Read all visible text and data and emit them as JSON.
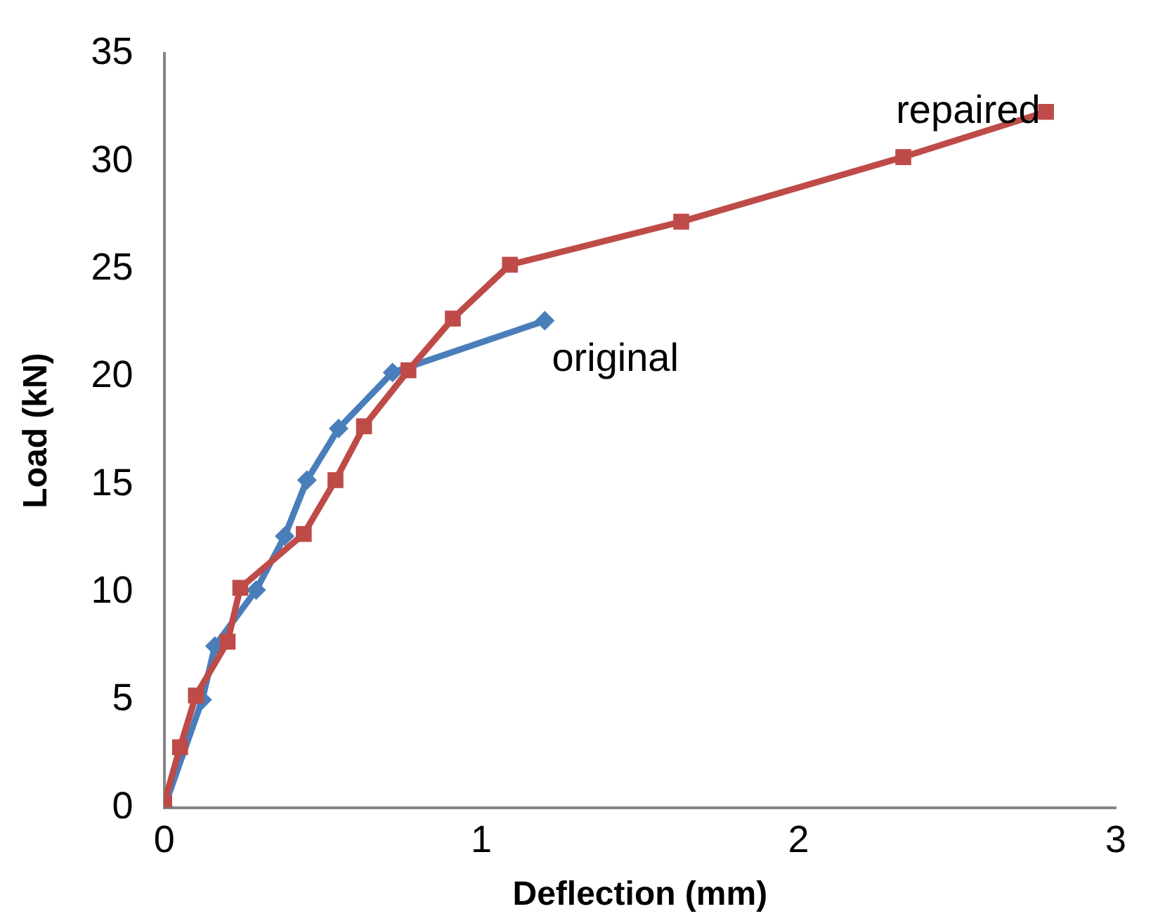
{
  "chart_data": {
    "type": "line",
    "xlabel": "Deflection (mm)",
    "ylabel": "Load (kN)",
    "xlim": [
      0,
      3
    ],
    "xticks": [
      0,
      1,
      2,
      3
    ],
    "ylim": [
      0,
      35
    ],
    "yticks": [
      0,
      5,
      10,
      15,
      20,
      25,
      30,
      35
    ],
    "grid": false,
    "legend": false,
    "line_style": "solid",
    "series": [
      {
        "name": "original",
        "color": "#4a7ebb",
        "marker": "diamond",
        "x": [
          0,
          0.12,
          0.16,
          0.29,
          0.38,
          0.45,
          0.55,
          0.72,
          1.2
        ],
        "values": [
          0,
          5,
          7.5,
          10.1,
          12.6,
          15.2,
          17.6,
          20.2,
          22.6
        ]
      },
      {
        "name": "repaired",
        "color": "#be4b48",
        "marker": "square",
        "x": [
          0,
          0.05,
          0.1,
          0.2,
          0.24,
          0.44,
          0.54,
          0.63,
          0.77,
          0.91,
          1.09,
          1.63,
          2.33,
          2.78
        ],
        "values": [
          0.2,
          2.8,
          5.2,
          7.7,
          10.2,
          12.7,
          15.2,
          17.7,
          20.3,
          22.7,
          25.2,
          27.2,
          30.2,
          32.3
        ]
      }
    ]
  }
}
